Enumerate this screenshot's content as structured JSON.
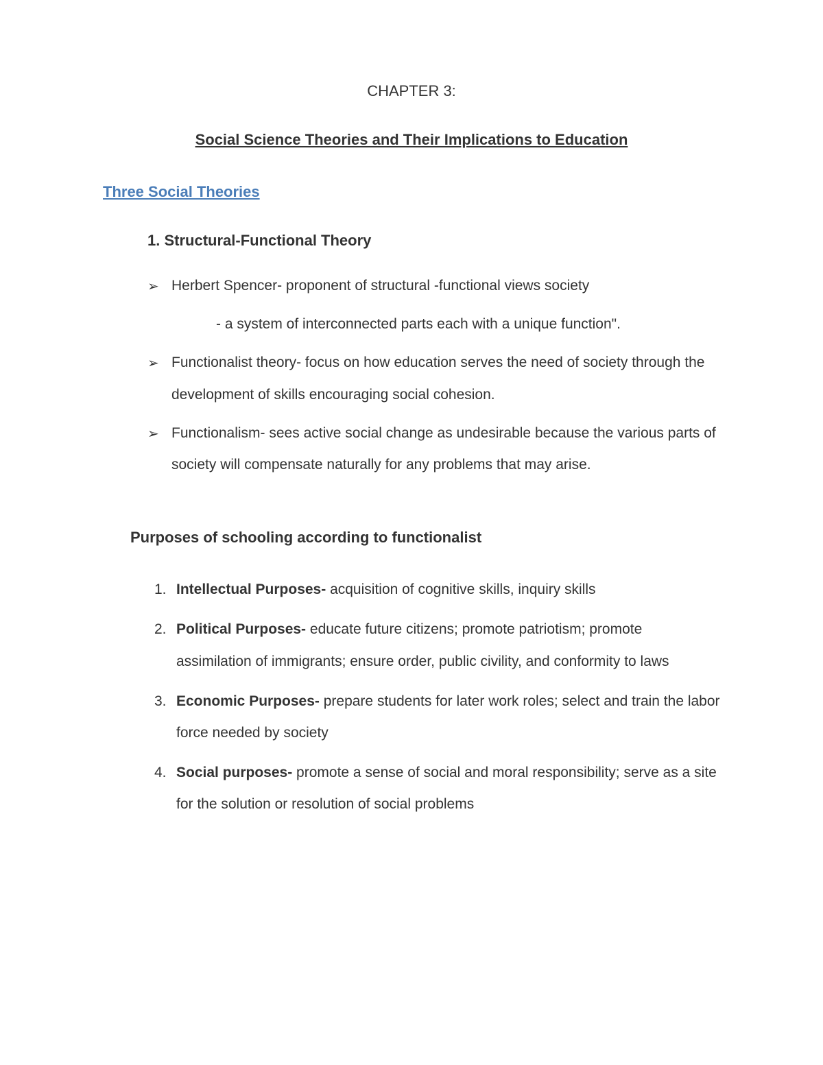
{
  "document": {
    "chapter_label": "CHAPTER 3:",
    "chapter_title": "Social Science Theories and Their Implications to Education",
    "section_heading": "Three Social Theories",
    "theory": {
      "number": "1.",
      "title": "Structural-Functional Theory",
      "bullets": [
        {
          "marker": "➢",
          "text": "Herbert Spencer- proponent of structural -functional views society",
          "sub": "- a system of interconnected parts each with a unique function\"."
        },
        {
          "marker": "➢",
          "text": "Functionalist theory- focus on how education serves the need of society through the development of skills encouraging social cohesion."
        },
        {
          "marker": "➢",
          "text": "Functionalism- sees active social change as undesirable because the various parts of society will compensate naturally for any problems that may arise."
        }
      ]
    },
    "purposes": {
      "heading": "Purposes of schooling according to functionalist",
      "items": [
        {
          "num": "1.",
          "bold": "Intellectual Purposes-",
          "rest": " acquisition of cognitive skills, inquiry skills"
        },
        {
          "num": "2.",
          "bold": "Political Purposes-",
          "rest": " educate future citizens; promote patriotism; promote assimilation of immigrants; ensure order, public civility, and conformity to laws"
        },
        {
          "num": "3.",
          "bold": "Economic Purposes-",
          "rest": " prepare students for later work roles; select and train the labor force needed by society"
        },
        {
          "num": "4.",
          "bold": "Social purposes-",
          "rest": " promote a sense of social and moral responsibility; serve as a site for the solution or resolution of social problems"
        }
      ]
    }
  },
  "styles": {
    "background_color": "#ffffff",
    "text_color": "#333333",
    "link_color": "#4a7db8",
    "font_family": "Verdana",
    "title_fontsize": 22,
    "body_fontsize": 21,
    "line_height": 2.2
  }
}
